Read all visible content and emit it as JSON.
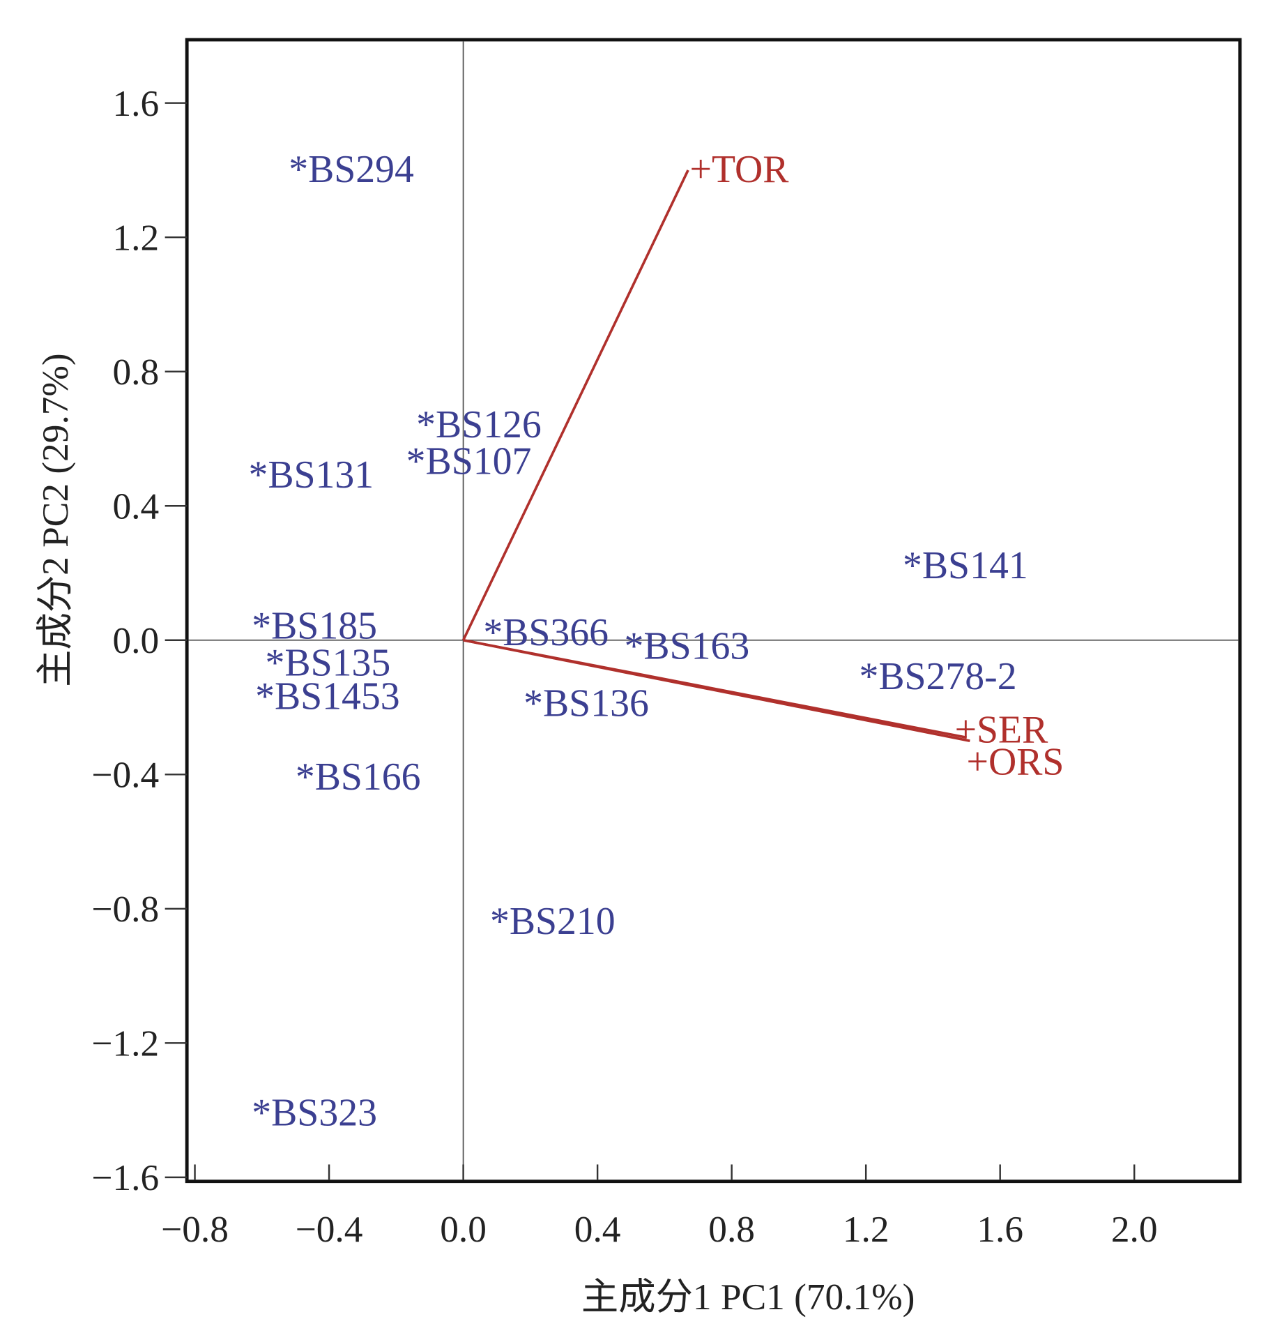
{
  "chart_data": {
    "type": "scatter",
    "subtype": "biplot",
    "title": "",
    "xlabel": "主成分1 PC1 (70.1%)",
    "ylabel": "主成分2 PC2 (29.7%)",
    "xlim": [
      -0.82,
      2.34
    ],
    "ylim": [
      -1.61,
      1.79
    ],
    "xticks": [
      "−0.8",
      "−0.4",
      "0.0",
      "0.4",
      "0.8",
      "1.2",
      "1.6",
      "2.0"
    ],
    "xtick_values": [
      -0.8,
      -0.4,
      0.0,
      0.4,
      0.8,
      1.2,
      1.6,
      2.0
    ],
    "yticks": [
      "1.6",
      "1.2",
      "0.8",
      "0.4",
      "0.0",
      "−0.4",
      "−0.8",
      "−1.2",
      "−1.6"
    ],
    "ytick_values": [
      1.6,
      1.2,
      0.8,
      0.4,
      0.0,
      -0.4,
      -0.8,
      -1.2,
      -1.6
    ],
    "grid": false,
    "reference_lines": {
      "x": 0,
      "y": 0
    },
    "colors": {
      "points": "#3b3f91",
      "vectors": "#b0302c"
    },
    "points": [
      {
        "label": "*BS294",
        "x": -0.49,
        "y": 1.42
      },
      {
        "label": "*BS126",
        "x": -0.11,
        "y": 0.66
      },
      {
        "label": "*BS107",
        "x": -0.14,
        "y": 0.55
      },
      {
        "label": "*BS131",
        "x": -0.61,
        "y": 0.51
      },
      {
        "label": "*BS141",
        "x": 1.34,
        "y": 0.24
      },
      {
        "label": "*BS185",
        "x": -0.6,
        "y": 0.06
      },
      {
        "label": "*BS366",
        "x": 0.09,
        "y": 0.04
      },
      {
        "label": "*BS163",
        "x": 0.51,
        "y": 0.0
      },
      {
        "label": "*BS135",
        "x": -0.56,
        "y": -0.05
      },
      {
        "label": "*BS278-2",
        "x": 1.21,
        "y": -0.09
      },
      {
        "label": "*BS1453",
        "x": -0.59,
        "y": -0.15
      },
      {
        "label": "*BS136",
        "x": 0.21,
        "y": -0.17
      },
      {
        "label": "*BS166",
        "x": -0.47,
        "y": -0.39
      },
      {
        "label": "*BS210",
        "x": 0.11,
        "y": -0.82
      },
      {
        "label": "*BS323",
        "x": -0.6,
        "y": -1.39
      }
    ],
    "vectors": [
      {
        "label": "+TOR",
        "x": 0.67,
        "y": 1.4
      },
      {
        "label": "+SER",
        "x": 1.5,
        "y": -0.29
      },
      {
        "label": "+ORS",
        "x": 1.51,
        "y": -0.3
      }
    ]
  }
}
